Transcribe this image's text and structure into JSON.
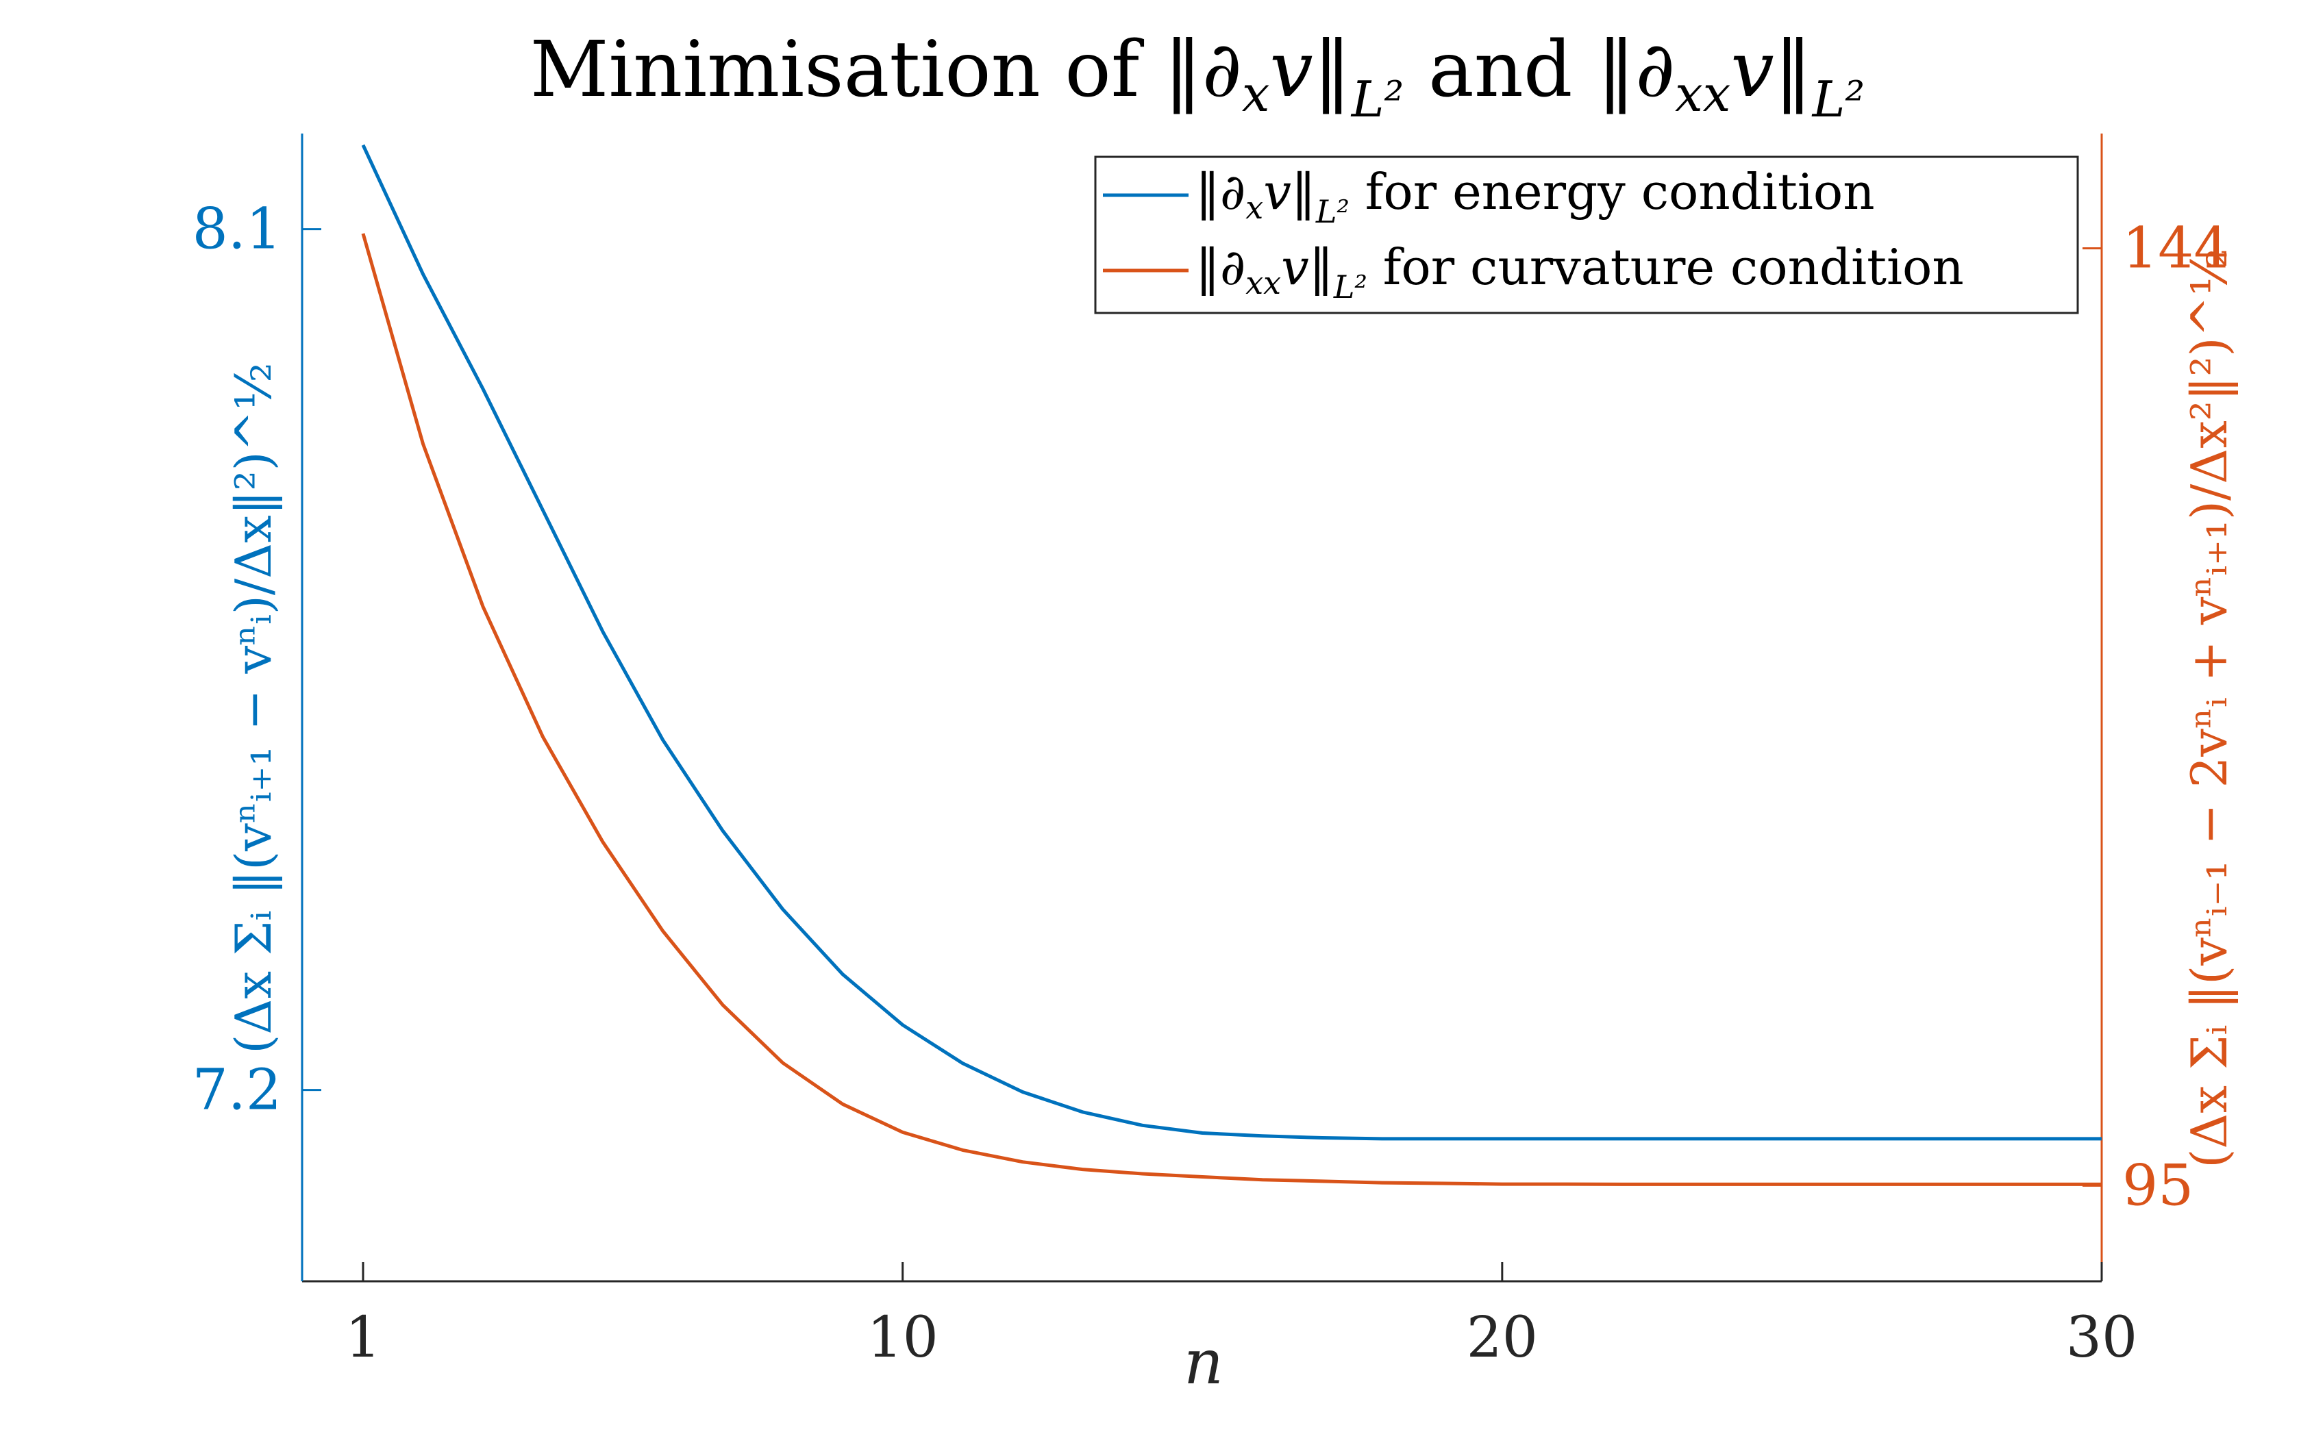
{
  "chart_data": {
    "type": "line",
    "title": "Minimisation of ‖∂ₓv‖_L² and ‖∂ₓₓv‖_L²",
    "title_parts": {
      "pre": "Minimisation of ‖∂",
      "sub1": "x",
      "mid": "v‖",
      "l2a": "L²",
      "and": " and ‖∂",
      "sub2": "xx",
      "mid2": "v‖",
      "l2b": "L²"
    },
    "xlabel": "n",
    "ylabel_left": "(Δx Σᵢ ‖(vⁿᵢ₊₁ − vⁿᵢ)/Δx‖²)^½",
    "ylabel_right": "(Δx Σᵢ ‖(vⁿᵢ₋₁ − 2vⁿᵢ + vⁿᵢ₊₁)/Δx²‖²)^½",
    "xlim": [
      0,
      30
    ],
    "ylim_left": [
      7.0,
      8.2
    ],
    "ylim_right": [
      90,
      150
    ],
    "xticks": [
      1,
      10,
      20,
      30
    ],
    "yticks_left": [
      7.2,
      8.1
    ],
    "yticks_right": [
      95,
      144
    ],
    "xtick_labels": [
      "1",
      "10",
      "20",
      "30"
    ],
    "ytick_labels_left": [
      "7.2",
      "8.1"
    ],
    "ytick_labels_right": [
      "95",
      "144"
    ],
    "grid": false,
    "legend_position": "top-right",
    "x": [
      1,
      2,
      3,
      4,
      5,
      6,
      7,
      8,
      9,
      10,
      11,
      12,
      13,
      14,
      15,
      16,
      17,
      18,
      19,
      20,
      21,
      22,
      23,
      24,
      25,
      26,
      27,
      28,
      29,
      30
    ],
    "series": [
      {
        "name": "‖∂ₓv‖_L² for energy condition",
        "axis": "left",
        "color": "#0072BD",
        "values": [
          8.188,
          8.053,
          7.933,
          7.806,
          7.679,
          7.566,
          7.471,
          7.389,
          7.321,
          7.268,
          7.228,
          7.198,
          7.177,
          7.163,
          7.155,
          7.152,
          7.15,
          7.149,
          7.149,
          7.149,
          7.149,
          7.149,
          7.149,
          7.149,
          7.149,
          7.149,
          7.149,
          7.149,
          7.149,
          7.149
        ]
      },
      {
        "name": "‖∂ₓₓv‖_L² for curvature condition",
        "axis": "right",
        "color": "#D95319",
        "values": [
          144.77,
          133.78,
          125.27,
          118.45,
          112.96,
          108.31,
          104.44,
          101.42,
          99.26,
          97.79,
          96.86,
          96.24,
          95.85,
          95.62,
          95.46,
          95.31,
          95.23,
          95.15,
          95.12,
          95.08,
          95.08,
          95.07,
          95.07,
          95.07,
          95.07,
          95.07,
          95.07,
          95.07,
          95.07,
          95.07
        ]
      }
    ],
    "legend": [
      {
        "pre": "‖∂",
        "sub": "x",
        "post": "v‖",
        "l2": "L²",
        "text": " for energy condition"
      },
      {
        "pre": "‖∂",
        "sub": "xx",
        "post": "v‖",
        "l2": "L²",
        "text": " for curvature condition"
      }
    ]
  }
}
